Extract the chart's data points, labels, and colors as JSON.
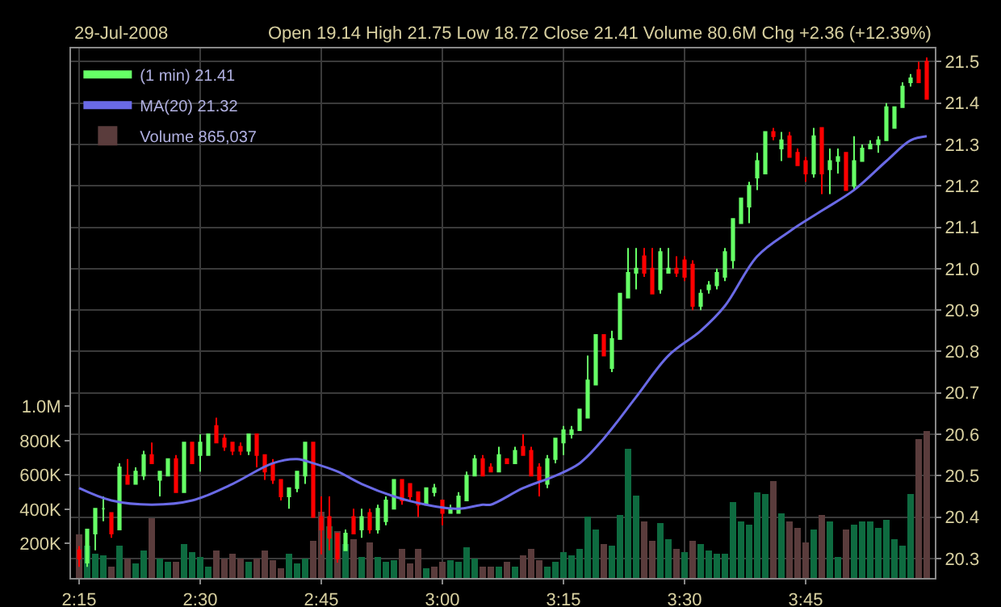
{
  "chart_data": {
    "type": "candlestick",
    "title": "29-Jul-2008",
    "subtitle": "Open 19.14 High 21.75 Low 18.72 Close 21.41 Volume 80.6M Chg +2.36 (+12.39%)",
    "x": [
      "2008-07-29T14:15",
      "2008-07-29T14:16",
      "2008-07-29T14:17",
      "2008-07-29T14:18",
      "2008-07-29T14:19",
      "2008-07-29T14:20",
      "2008-07-29T14:21",
      "2008-07-29T14:22",
      "2008-07-29T14:23",
      "2008-07-29T14:24",
      "2008-07-29T14:25",
      "2008-07-29T14:26",
      "2008-07-29T14:27",
      "2008-07-29T14:28",
      "2008-07-29T14:29",
      "2008-07-29T14:30",
      "2008-07-29T14:31",
      "2008-07-29T14:32",
      "2008-07-29T14:33",
      "2008-07-29T14:34",
      "2008-07-29T14:35",
      "2008-07-29T14:36",
      "2008-07-29T14:37",
      "2008-07-29T14:38",
      "2008-07-29T14:39",
      "2008-07-29T14:40",
      "2008-07-29T14:41",
      "2008-07-29T14:42",
      "2008-07-29T14:43",
      "2008-07-29T14:44",
      "2008-07-29T14:45",
      "2008-07-29T14:46",
      "2008-07-29T14:47",
      "2008-07-29T14:48",
      "2008-07-29T14:49",
      "2008-07-29T14:50",
      "2008-07-29T14:51",
      "2008-07-29T14:52",
      "2008-07-29T14:53",
      "2008-07-29T14:54",
      "2008-07-29T14:55",
      "2008-07-29T14:56",
      "2008-07-29T14:57",
      "2008-07-29T14:58",
      "2008-07-29T14:59",
      "2008-07-29T15:00",
      "2008-07-29T15:01",
      "2008-07-29T15:02",
      "2008-07-29T15:03",
      "2008-07-29T15:04",
      "2008-07-29T15:05",
      "2008-07-29T15:06",
      "2008-07-29T15:07",
      "2008-07-29T15:08",
      "2008-07-29T15:09",
      "2008-07-29T15:10",
      "2008-07-29T15:11",
      "2008-07-29T15:12",
      "2008-07-29T15:13",
      "2008-07-29T15:14",
      "2008-07-29T15:15",
      "2008-07-29T15:16",
      "2008-07-29T15:17",
      "2008-07-29T15:18",
      "2008-07-29T15:19",
      "2008-07-29T15:20",
      "2008-07-29T15:21",
      "2008-07-29T15:22",
      "2008-07-29T15:23",
      "2008-07-29T15:24",
      "2008-07-29T15:25",
      "2008-07-29T15:26",
      "2008-07-29T15:27",
      "2008-07-29T15:28",
      "2008-07-29T15:29",
      "2008-07-29T15:30",
      "2008-07-29T15:31",
      "2008-07-29T15:32",
      "2008-07-29T15:33",
      "2008-07-29T15:34",
      "2008-07-29T15:35",
      "2008-07-29T15:36",
      "2008-07-29T15:37",
      "2008-07-29T15:38",
      "2008-07-29T15:39",
      "2008-07-29T15:40",
      "2008-07-29T15:41",
      "2008-07-29T15:42",
      "2008-07-29T15:43",
      "2008-07-29T15:44",
      "2008-07-29T15:45",
      "2008-07-29T15:46",
      "2008-07-29T15:47",
      "2008-07-29T15:48",
      "2008-07-29T15:49",
      "2008-07-29T15:50",
      "2008-07-29T15:51",
      "2008-07-29T15:52",
      "2008-07-29T15:53",
      "2008-07-29T15:54",
      "2008-07-29T15:55",
      "2008-07-29T15:56",
      "2008-07-29T15:57",
      "2008-07-29T15:58",
      "2008-07-29T15:59",
      "2008-07-29T16:00"
    ],
    "series": [
      {
        "type": "bar",
        "name": "Volume 865,037",
        "axis": "y2",
        "color": "#0e6b40",
        "values": [
          250000,
          190000,
          140000,
          130000,
          70000,
          190000,
          110000,
          80000,
          160000,
          350000,
          110000,
          90000,
          90000,
          200000,
          150000,
          120000,
          70000,
          160000,
          110000,
          140000,
          110000,
          90000,
          110000,
          160000,
          100000,
          60000,
          140000,
          80000,
          110000,
          220000,
          390000,
          300000,
          270000,
          200000,
          230000,
          120000,
          210000,
          120000,
          90000,
          100000,
          170000,
          80000,
          170000,
          60000,
          70000,
          90000,
          100000,
          90000,
          180000,
          110000,
          70000,
          70000,
          70000,
          90000,
          70000,
          130000,
          170000,
          100000,
          70000,
          90000,
          150000,
          130000,
          170000,
          360000,
          280000,
          200000,
          190000,
          370000,
          750000,
          480000,
          330000,
          220000,
          320000,
          230000,
          170000,
          150000,
          220000,
          200000,
          160000,
          140000,
          140000,
          440000,
          330000,
          310000,
          500000,
          490000,
          560000,
          380000,
          330000,
          290000,
          210000,
          280000,
          370000,
          330000,
          120000,
          280000,
          310000,
          330000,
          330000,
          290000,
          340000,
          230000,
          190000,
          490000,
          810000,
          860000
        ],
        "colors": [
          "#5a3c3c",
          "#0e6b40",
          "#0e6b40",
          "#0e6b40",
          "#5a3c3c",
          "#0e6b40",
          "#5a3c3c",
          "#0e6b40",
          "#0e6b40",
          "#5a3c3c",
          "#0e6b40",
          "#0e6b40",
          "#5a3c3c",
          "#0e6b40",
          "#0e6b40",
          "#0e6b40",
          "#0e6b40",
          "#5a3c3c",
          "#5a3c3c",
          "#5a3c3c",
          "#5a3c3c",
          "#0e6b40",
          "#5a3c3c",
          "#5a3c3c",
          "#5a3c3c",
          "#5a3c3c",
          "#0e6b40",
          "#0e6b40",
          "#0e6b40",
          "#5a3c3c",
          "#5a3c3c",
          "#0e6b40",
          "#5a3c3c",
          "#0e6b40",
          "#5a3c3c",
          "#0e6b40",
          "#5a3c3c",
          "#0e6b40",
          "#0e6b40",
          "#0e6b40",
          "#5a3c3c",
          "#5a3c3c",
          "#5a3c3c",
          "#0e6b40",
          "#5a3c3c",
          "#5a3c3c",
          "#0e6b40",
          "#0e6b40",
          "#0e6b40",
          "#0e6b40",
          "#5a3c3c",
          "#5a3c3c",
          "#0e6b40",
          "#5a3c3c",
          "#0e6b40",
          "#5a3c3c",
          "#5a3c3c",
          "#5a3c3c",
          "#0e6b40",
          "#0e6b40",
          "#0e6b40",
          "#0e6b40",
          "#0e6b40",
          "#0e6b40",
          "#0e6b40",
          "#5a3c3c",
          "#0e6b40",
          "#0e6b40",
          "#0e6b40",
          "#0e6b40",
          "#5a3c3c",
          "#5a3c3c",
          "#0e6b40",
          "#0e6b40",
          "#5a3c3c",
          "#0e6b40",
          "#5a3c3c",
          "#0e6b40",
          "#0e6b40",
          "#0e6b40",
          "#0e6b40",
          "#0e6b40",
          "#0e6b40",
          "#0e6b40",
          "#0e6b40",
          "#0e6b40",
          "#5a3c3c",
          "#0e6b40",
          "#5a3c3c",
          "#5a3c3c",
          "#5a3c3c",
          "#0e6b40",
          "#5a3c3c",
          "#0e6b40",
          "#0e6b40",
          "#5a3c3c",
          "#0e6b40",
          "#0e6b40",
          "#0e6b40",
          "#0e6b40",
          "#0e6b40",
          "#0e6b40",
          "#0e6b40",
          "#0e6b40",
          "#5a3c3c",
          "#5a3c3c"
        ]
      },
      {
        "name": "(1 min) 21.41",
        "color": "#66ff66",
        "ohlc": [
          [
            20.32,
            20.33,
            20.28,
            20.3
          ],
          [
            20.29,
            20.37,
            20.28,
            20.37
          ],
          [
            20.36,
            20.42,
            20.32,
            20.42
          ],
          [
            20.42,
            20.45,
            20.39,
            20.42
          ],
          [
            20.41,
            20.41,
            20.35,
            20.36
          ],
          [
            20.37,
            20.53,
            20.37,
            20.52
          ],
          [
            20.5,
            20.54,
            20.48,
            20.48
          ],
          [
            20.48,
            20.52,
            20.48,
            20.51
          ],
          [
            20.5,
            20.56,
            20.49,
            20.55
          ],
          [
            20.55,
            20.58,
            20.53,
            20.53
          ],
          [
            20.49,
            20.51,
            20.45,
            20.51
          ],
          [
            20.5,
            20.54,
            20.5,
            20.54
          ],
          [
            20.54,
            20.55,
            20.46,
            20.46
          ],
          [
            20.46,
            20.58,
            20.46,
            20.58
          ],
          [
            20.58,
            20.58,
            20.53,
            20.53
          ],
          [
            20.55,
            20.6,
            20.51,
            20.58
          ],
          [
            20.55,
            20.6,
            20.55,
            20.6
          ],
          [
            20.62,
            20.64,
            20.58,
            20.58
          ],
          [
            20.59,
            20.6,
            20.56,
            20.57
          ],
          [
            20.58,
            20.58,
            20.55,
            20.56
          ],
          [
            20.57,
            20.58,
            20.55,
            20.56
          ],
          [
            20.56,
            20.6,
            20.55,
            20.6
          ],
          [
            20.6,
            20.6,
            20.52,
            20.55
          ],
          [
            20.55,
            20.55,
            20.49,
            20.51
          ],
          [
            20.53,
            20.54,
            20.48,
            20.49
          ],
          [
            20.49,
            20.49,
            20.44,
            20.45
          ],
          [
            20.45,
            20.47,
            20.42,
            20.47
          ],
          [
            20.47,
            20.51,
            20.46,
            20.51
          ],
          [
            20.5,
            20.58,
            20.48,
            20.58
          ],
          [
            20.58,
            20.58,
            20.4,
            20.4
          ],
          [
            20.4,
            20.45,
            20.31,
            20.37
          ],
          [
            20.4,
            20.45,
            20.32,
            20.35
          ],
          [
            20.36,
            20.36,
            20.29,
            20.3
          ],
          [
            20.32,
            20.37,
            20.32,
            20.36
          ],
          [
            20.4,
            20.42,
            20.36,
            20.36
          ],
          [
            20.37,
            20.42,
            20.35,
            20.4
          ],
          [
            20.41,
            20.42,
            20.36,
            20.37
          ],
          [
            20.37,
            20.43,
            20.36,
            20.42
          ],
          [
            20.39,
            20.45,
            20.38,
            20.44
          ],
          [
            20.42,
            20.49,
            20.42,
            20.49
          ],
          [
            20.49,
            20.49,
            20.43,
            20.44
          ],
          [
            20.48,
            20.48,
            20.44,
            20.45
          ],
          [
            20.46,
            20.46,
            20.4,
            20.43
          ],
          [
            20.43,
            20.47,
            20.43,
            20.47
          ],
          [
            20.46,
            20.48,
            20.45,
            20.47
          ],
          [
            20.44,
            20.44,
            20.38,
            20.41
          ],
          [
            20.41,
            20.43,
            20.41,
            20.42
          ],
          [
            20.41,
            20.46,
            20.41,
            20.45
          ],
          [
            20.44,
            20.51,
            20.44,
            20.5
          ],
          [
            20.5,
            20.55,
            20.5,
            20.54
          ],
          [
            20.54,
            20.55,
            20.5,
            20.5
          ],
          [
            20.52,
            20.53,
            20.51,
            20.51
          ],
          [
            20.51,
            20.57,
            20.51,
            20.55
          ],
          [
            20.54,
            20.54,
            20.53,
            20.53
          ],
          [
            20.53,
            20.57,
            20.53,
            20.56
          ],
          [
            20.57,
            20.6,
            20.55,
            20.55
          ],
          [
            20.56,
            20.57,
            20.5,
            20.5
          ],
          [
            20.52,
            20.53,
            20.45,
            20.49
          ],
          [
            20.48,
            20.55,
            20.47,
            20.54
          ],
          [
            20.54,
            20.59,
            20.53,
            20.59
          ],
          [
            20.58,
            20.62,
            20.55,
            20.61
          ],
          [
            20.6,
            20.62,
            20.59,
            20.61
          ],
          [
            20.61,
            20.66,
            20.61,
            20.66
          ],
          [
            20.64,
            20.79,
            20.64,
            20.73
          ],
          [
            20.72,
            20.84,
            20.72,
            20.84
          ],
          [
            20.84,
            20.84,
            20.79,
            20.79
          ],
          [
            20.76,
            20.85,
            20.75,
            20.83
          ],
          [
            20.83,
            20.94,
            20.83,
            20.94
          ],
          [
            20.93,
            21.05,
            20.93,
            20.99
          ],
          [
            20.99,
            21.05,
            20.95,
            21.0
          ],
          [
            21.03,
            21.05,
            20.98,
            20.99
          ],
          [
            21.0,
            21.05,
            20.94,
            20.94
          ],
          [
            20.95,
            21.05,
            20.94,
            21.04
          ],
          [
            20.99,
            21.05,
            20.99,
            21.0
          ],
          [
            21.0,
            21.03,
            20.98,
            20.99
          ],
          [
            21.02,
            21.03,
            20.97,
            20.98
          ],
          [
            21.01,
            21.02,
            20.9,
            20.91
          ],
          [
            20.91,
            20.95,
            20.9,
            20.94
          ],
          [
            20.95,
            20.97,
            20.94,
            20.96
          ],
          [
            20.96,
            21.0,
            20.95,
            20.99
          ],
          [
            20.98,
            21.05,
            20.97,
            21.04
          ],
          [
            21.02,
            21.12,
            21.0,
            21.12
          ],
          [
            21.11,
            21.17,
            21.11,
            21.17
          ],
          [
            21.15,
            21.21,
            21.11,
            21.2
          ],
          [
            21.22,
            21.28,
            21.19,
            21.26
          ],
          [
            21.23,
            21.33,
            21.23,
            21.33
          ],
          [
            21.33,
            21.34,
            21.31,
            21.32
          ],
          [
            21.29,
            21.33,
            21.26,
            21.31
          ],
          [
            21.32,
            21.33,
            21.27,
            21.27
          ],
          [
            21.28,
            21.29,
            21.25,
            21.25
          ],
          [
            21.26,
            21.27,
            21.21,
            21.23
          ],
          [
            21.23,
            21.34,
            21.22,
            21.32
          ],
          [
            21.34,
            21.34,
            21.18,
            21.23
          ],
          [
            21.24,
            21.29,
            21.18,
            21.26
          ],
          [
            21.26,
            21.29,
            21.23,
            21.27
          ],
          [
            21.28,
            21.28,
            21.19,
            21.19
          ],
          [
            21.2,
            21.32,
            21.19,
            21.26
          ],
          [
            21.26,
            21.3,
            21.26,
            21.29
          ],
          [
            21.29,
            21.31,
            21.29,
            21.3
          ],
          [
            21.3,
            21.32,
            21.28,
            21.31
          ],
          [
            21.31,
            21.4,
            21.31,
            21.39
          ],
          [
            21.34,
            21.39,
            21.34,
            21.39
          ],
          [
            21.39,
            21.45,
            21.39,
            21.44
          ],
          [
            21.45,
            21.47,
            21.44,
            21.46
          ],
          [
            21.48,
            21.5,
            21.45,
            21.45
          ],
          [
            21.5,
            21.51,
            21.41,
            21.41
          ]
        ],
        "colors": [
          "#ff0000",
          "#66ff66",
          "#66ff66",
          "#66ff66",
          "#ff0000",
          "#66ff66",
          "#ff0000",
          "#66ff66",
          "#66ff66",
          "#ff0000",
          "#66ff66",
          "#66ff66",
          "#ff0000",
          "#66ff66",
          "#ff0000",
          "#66ff66",
          "#66ff66",
          "#ff0000",
          "#ff0000",
          "#ff0000",
          "#ff0000",
          "#66ff66",
          "#ff0000",
          "#ff0000",
          "#ff0000",
          "#ff0000",
          "#66ff66",
          "#66ff66",
          "#66ff66",
          "#ff0000",
          "#ff0000",
          "#ff0000",
          "#ff0000",
          "#66ff66",
          "#ff0000",
          "#66ff66",
          "#ff0000",
          "#66ff66",
          "#66ff66",
          "#66ff66",
          "#ff0000",
          "#ff0000",
          "#ff0000",
          "#66ff66",
          "#66ff66",
          "#ff0000",
          "#66ff66",
          "#66ff66",
          "#66ff66",
          "#66ff66",
          "#ff0000",
          "#ff0000",
          "#66ff66",
          "#ff0000",
          "#66ff66",
          "#ff0000",
          "#ff0000",
          "#ff0000",
          "#66ff66",
          "#66ff66",
          "#66ff66",
          "#66ff66",
          "#66ff66",
          "#66ff66",
          "#66ff66",
          "#ff0000",
          "#66ff66",
          "#66ff66",
          "#66ff66",
          "#66ff66",
          "#ff0000",
          "#ff0000",
          "#66ff66",
          "#66ff66",
          "#ff0000",
          "#ff0000",
          "#ff0000",
          "#66ff66",
          "#66ff66",
          "#66ff66",
          "#66ff66",
          "#66ff66",
          "#66ff66",
          "#66ff66",
          "#66ff66",
          "#66ff66",
          "#ff0000",
          "#66ff66",
          "#ff0000",
          "#ff0000",
          "#ff0000",
          "#66ff66",
          "#ff0000",
          "#66ff66",
          "#66ff66",
          "#ff0000",
          "#66ff66",
          "#66ff66",
          "#66ff66",
          "#66ff66",
          "#66ff66",
          "#66ff66",
          "#66ff66",
          "#66ff66",
          "#ff0000",
          "#ff0000"
        ]
      },
      {
        "type": "line",
        "name": "MA(20) 21.32",
        "color": "#6a6ae6",
        "x": [
          "2008-07-29T14:15",
          "2008-07-29T14:19",
          "2008-07-29T14:24",
          "2008-07-29T14:29",
          "2008-07-29T14:34",
          "2008-07-29T14:39",
          "2008-07-29T14:42",
          "2008-07-29T14:44",
          "2008-07-29T14:47",
          "2008-07-29T14:50",
          "2008-07-29T14:54",
          "2008-07-29T14:58",
          "2008-07-29T15:02",
          "2008-07-29T15:05",
          "2008-07-29T15:06",
          "2008-07-29T15:10",
          "2008-07-29T15:14",
          "2008-07-29T15:17",
          "2008-07-29T15:20",
          "2008-07-29T15:24",
          "2008-07-29T15:28",
          "2008-07-29T15:32",
          "2008-07-29T15:35",
          "2008-07-29T15:39",
          "2008-07-29T15:43",
          "2008-07-29T15:47",
          "2008-07-29T15:51",
          "2008-07-29T15:55",
          "2008-07-29T15:58",
          "2008-07-29T16:00"
        ],
        "values": [
          20.47,
          20.44,
          20.43,
          20.44,
          20.48,
          20.53,
          20.54,
          20.53,
          20.51,
          20.48,
          20.45,
          20.43,
          20.42,
          20.43,
          20.43,
          20.47,
          20.5,
          20.53,
          20.59,
          20.69,
          20.79,
          20.85,
          20.91,
          21.03,
          21.09,
          21.14,
          21.19,
          21.26,
          21.31,
          21.32
        ]
      }
    ],
    "xlim": [
      "2008-07-29T14:14",
      "2008-07-29T16:01"
    ],
    "xticks": [
      {
        "value": "2008-07-29T14:15",
        "label": "2:15"
      },
      {
        "value": "2008-07-29T14:30",
        "label": "2:30"
      },
      {
        "value": "2008-07-29T14:45",
        "label": "2:45"
      },
      {
        "value": "2008-07-29T15:00",
        "label": "3:00"
      },
      {
        "value": "2008-07-29T15:15",
        "label": "3:15"
      },
      {
        "value": "2008-07-29T15:30",
        "label": "3:30"
      },
      {
        "value": "2008-07-29T15:45",
        "label": "3:45"
      }
    ],
    "ylim": [
      20.253,
      21.532
    ],
    "yticks": [
      20.3,
      20.4,
      20.5,
      20.6,
      20.7,
      20.8,
      20.9,
      {
        "value": 21,
        "label": "21.0"
      },
      21.1,
      21.2,
      21.3,
      21.4,
      21.5
    ],
    "y2lim": [
      0,
      3084000
    ],
    "y2ticks": [
      {
        "value": 200000,
        "label": "200K"
      },
      {
        "value": 400000,
        "label": "400K"
      },
      {
        "value": 600000,
        "label": "600K"
      },
      {
        "value": 800000,
        "label": "800K"
      },
      {
        "value": 1000000,
        "label": "1.0M"
      }
    ],
    "grid": true,
    "legend": "top left"
  }
}
